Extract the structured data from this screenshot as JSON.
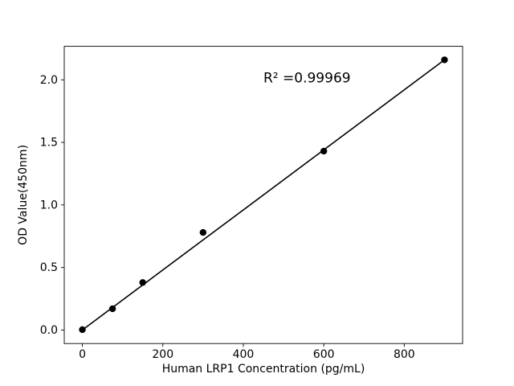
{
  "figure": {
    "background": "#ffffff"
  },
  "chart_data": {
    "type": "scatter",
    "title": "",
    "xlabel": "Human LRP1 Concentration (pg/mL)",
    "ylabel": "OD Value(450nm)",
    "x": [
      0,
      75,
      150,
      300,
      600,
      900
    ],
    "y": [
      0.003,
      0.17,
      0.38,
      0.78,
      1.43,
      2.16
    ],
    "fit_line": {
      "x": [
        0,
        900
      ],
      "y": [
        0.0,
        2.16
      ]
    },
    "annotation": {
      "text": "R² =0.99969",
      "x": 450,
      "y": 1.98
    },
    "xlim": [
      -45,
      945
    ],
    "ylim": [
      -0.108,
      2.268
    ],
    "xticks": [
      0,
      200,
      400,
      600,
      800
    ],
    "xtick_labels": [
      "0",
      "200",
      "400",
      "600",
      "800"
    ],
    "yticks": [
      0.0,
      0.5,
      1.0,
      1.5,
      2.0
    ],
    "ytick_labels": [
      "0.0",
      "0.5",
      "1.0",
      "1.5",
      "2.0"
    ],
    "grid": false,
    "legend": null,
    "colors": {
      "line": "#000000",
      "marker": "#000000",
      "text": "#000000",
      "spine": "#000000",
      "background": "#ffffff"
    }
  }
}
